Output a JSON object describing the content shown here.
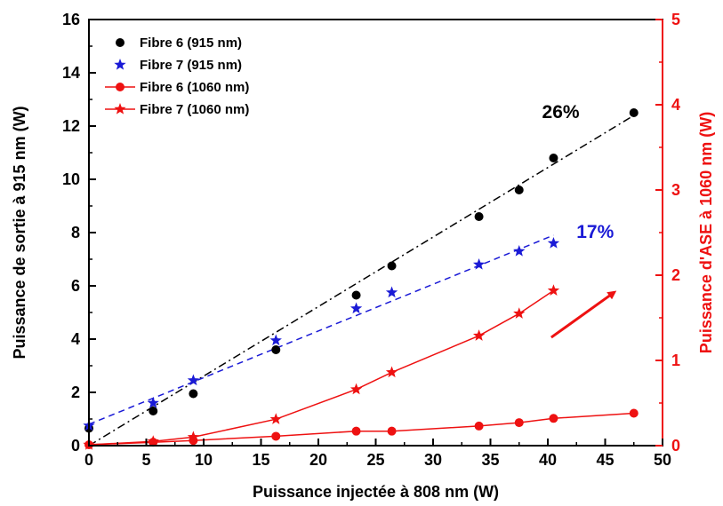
{
  "chart_data": {
    "type": "scatter",
    "xlabel": "Puissance injectée à 808 nm (W)",
    "ylabel_left": "Puissance de sortie à 915 nm (W)",
    "ylabel_right": "Puissance d'ASE à 1060 nm (W)",
    "xlim": [
      0,
      50
    ],
    "ylim_left": [
      0,
      16
    ],
    "ylim_right": [
      0,
      5
    ],
    "x_ticks": [
      "0",
      "5",
      "10",
      "15",
      "20",
      "25",
      "30",
      "35",
      "40",
      "45",
      "50"
    ],
    "y_ticks_left": [
      "0",
      "2",
      "4",
      "6",
      "8",
      "10",
      "12",
      "14",
      "16"
    ],
    "y_ticks_right": [
      "0",
      "1",
      "2",
      "3",
      "4",
      "5"
    ],
    "colors": {
      "black": "#000000",
      "blue": "#1a1ad6",
      "red": "#ee1111"
    },
    "series": [
      {
        "name": "Fibre 6 (915 nm)",
        "axis": "left",
        "marker": "circle",
        "line": false,
        "color": "#000000",
        "x": [
          0,
          5.6,
          9.1,
          16.3,
          23.3,
          26.4,
          34.0,
          37.5,
          40.5,
          47.5
        ],
        "y": [
          0.65,
          1.3,
          1.95,
          3.6,
          5.65,
          6.75,
          8.6,
          9.6,
          10.8,
          12.5
        ]
      },
      {
        "name": "Fibre 7 (915 nm)",
        "axis": "left",
        "marker": "star",
        "line": false,
        "color": "#1a1ad6",
        "x": [
          0,
          5.6,
          9.1,
          16.3,
          23.3,
          26.4,
          34.0,
          37.5,
          40.5
        ],
        "y": [
          0.75,
          1.6,
          2.45,
          3.95,
          5.15,
          5.75,
          6.8,
          7.3,
          7.6
        ]
      },
      {
        "name": "Fibre 6 (1060 nm)",
        "axis": "right",
        "marker": "circle",
        "line": true,
        "color": "#ee1111",
        "x": [
          0,
          5.6,
          9.1,
          16.3,
          23.3,
          26.4,
          34.0,
          37.5,
          40.5,
          47.5
        ],
        "y": [
          0.01,
          0.04,
          0.06,
          0.11,
          0.17,
          0.17,
          0.23,
          0.27,
          0.32,
          0.38
        ]
      },
      {
        "name": "Fibre 7 (1060 nm)",
        "axis": "right",
        "marker": "star",
        "line": true,
        "color": "#ee1111",
        "x": [
          0,
          5.6,
          9.1,
          16.3,
          23.3,
          26.4,
          34.0,
          37.5,
          40.5
        ],
        "y": [
          0.01,
          0.05,
          0.1,
          0.31,
          0.66,
          0.86,
          1.29,
          1.55,
          1.82
        ]
      }
    ],
    "fits": [
      {
        "color": "#000000",
        "style": "dash-dot",
        "axis": "left",
        "x": [
          0,
          47.5
        ],
        "y": [
          0,
          12.4
        ]
      },
      {
        "color": "#1a1ad6",
        "style": "dashed",
        "axis": "left",
        "x": [
          0,
          40.5
        ],
        "y": [
          0.8,
          7.9
        ]
      }
    ],
    "annotations": [
      {
        "text": "26%",
        "color": "#000000",
        "x": 39.5,
        "y": 12.3
      },
      {
        "text": "17%",
        "color": "#1a1ad6",
        "x": 42.5,
        "y": 7.8
      }
    ],
    "arrow": {
      "color": "#ee1111",
      "axis": "right",
      "x": [
        40.3,
        45.8
      ],
      "y": [
        1.27,
        1.8
      ]
    },
    "legend_position": "top-left",
    "grid": false
  }
}
